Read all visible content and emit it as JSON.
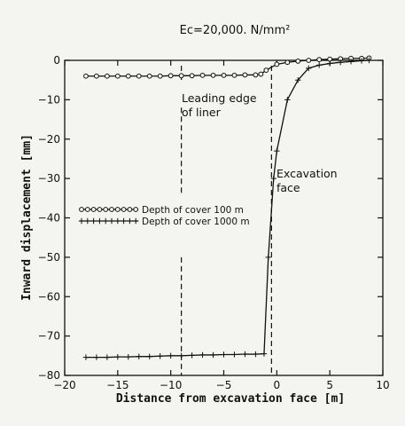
{
  "chart_data": {
    "type": "line",
    "title": "Ec=20,000. N/mm²",
    "xlabel": "Distance from excavation face [m]",
    "ylabel": "Inward displacement [mm]",
    "xlim": [
      -20,
      10
    ],
    "ylim": [
      -80,
      0
    ],
    "x_ticks": [
      -20,
      -15,
      -10,
      -5,
      0,
      5,
      10
    ],
    "y_ticks": [
      0,
      -10,
      -20,
      -30,
      -40,
      -50,
      -60,
      -70,
      -80
    ],
    "x_tick_labels": [
      "−20",
      "−15",
      "−10",
      "−5",
      "0",
      "5",
      "10"
    ],
    "y_tick_labels": [
      "0",
      "−10",
      "−20",
      "−30",
      "−40",
      "−50",
      "−60",
      "−70",
      "−80"
    ],
    "grid": false,
    "legend_position": "center-left",
    "series": [
      {
        "name": "Depth of cover 100 m",
        "marker": "circle",
        "x": [
          -18,
          -17,
          -16,
          -15,
          -14,
          -13,
          -12,
          -11,
          -10,
          -9,
          -8,
          -7,
          -6,
          -5,
          -4,
          -3,
          -2,
          -1.5,
          -1,
          0,
          1,
          2,
          3,
          4,
          5,
          6,
          7,
          8,
          8.7
        ],
        "y": [
          -4,
          -4,
          -4,
          -4,
          -4,
          -4,
          -4,
          -4,
          -3.9,
          -3.9,
          -3.9,
          -3.8,
          -3.8,
          -3.8,
          -3.8,
          -3.7,
          -3.7,
          -3.5,
          -2.5,
          -1,
          -0.5,
          -0.2,
          0,
          0.2,
          0.3,
          0.4,
          0.5,
          0.5,
          0.6
        ]
      },
      {
        "name": "Depth of cover 1000 m",
        "marker": "plus",
        "x": [
          -18,
          -17,
          -16,
          -15,
          -14,
          -13,
          -12,
          -11,
          -10,
          -9,
          -8,
          -7,
          -6,
          -5,
          -4,
          -3,
          -2,
          -1.2,
          -0.8,
          -0.3,
          0,
          1,
          2,
          3,
          4,
          5,
          6,
          7,
          8,
          8.7
        ],
        "y": [
          -75.4,
          -75.4,
          -75.4,
          -75.3,
          -75.3,
          -75.2,
          -75.2,
          -75.1,
          -75.0,
          -75.0,
          -74.9,
          -74.8,
          -74.8,
          -74.7,
          -74.7,
          -74.6,
          -74.6,
          -74.5,
          -50,
          -30,
          -23,
          -10,
          -5,
          -2,
          -1.2,
          -0.8,
          -0.5,
          -0.3,
          -0.1,
          0.0
        ]
      }
    ],
    "annotations": [
      {
        "text_lines": [
          "Leading edge",
          "of liner"
        ],
        "x_line": -9
      },
      {
        "text_lines": [
          "Excavation",
          "face"
        ],
        "x_line": -0.5
      }
    ]
  }
}
